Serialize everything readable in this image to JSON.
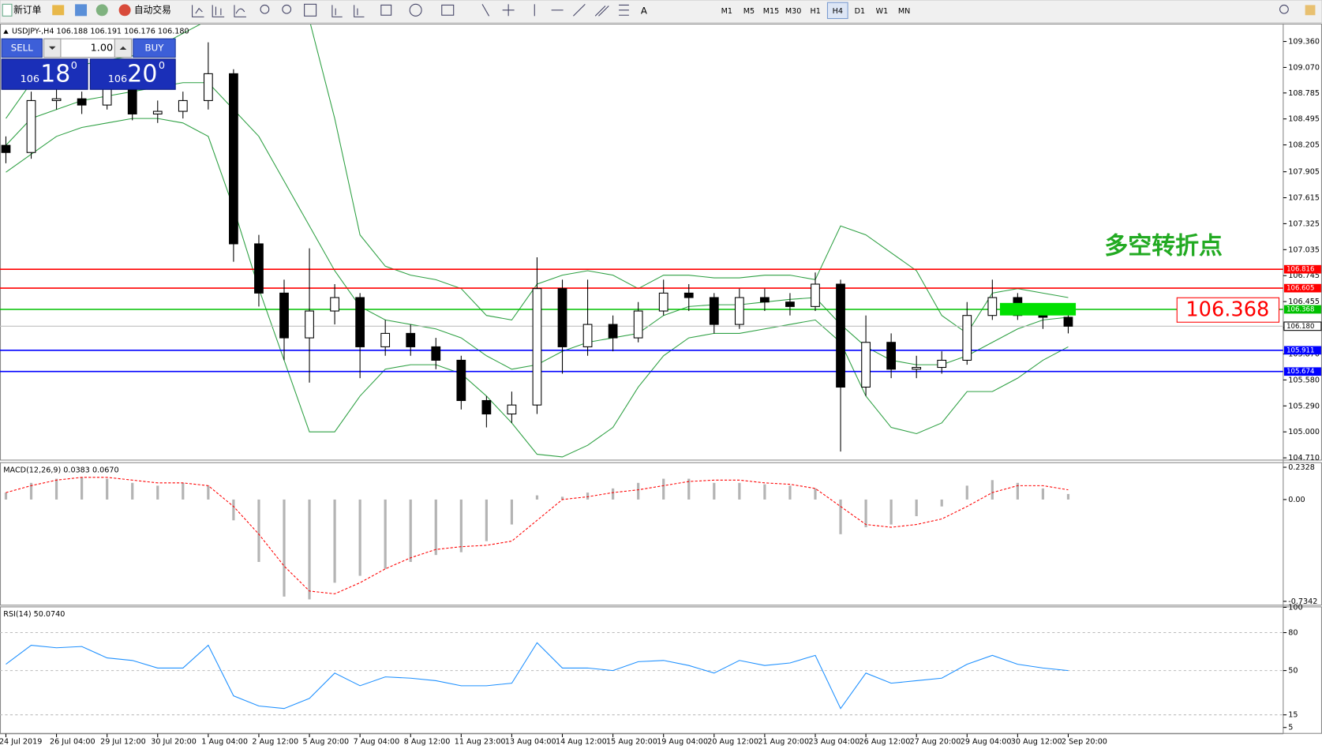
{
  "toolbar": {
    "new_order": "新订单",
    "auto_trading": "自动交易",
    "timeframes": [
      "M1",
      "M5",
      "M15",
      "M30",
      "H1",
      "H4",
      "D1",
      "W1",
      "MN"
    ],
    "active_timeframe": 5
  },
  "trade_panel": {
    "sell": "SELL",
    "lots": "1.00",
    "buy": "BUY",
    "bid": {
      "big": "106",
      "pips": "18",
      "point": "0"
    },
    "ask": {
      "big": "106",
      "pips": "20",
      "point": "0"
    }
  },
  "chart_data": [
    {
      "type": "candlestick",
      "header": "USDJPY-,H4  106.188 106.191 106.176 106.180",
      "categories": [
        "24 Jul 2019",
        null,
        "26 Jul 04:00",
        null,
        "29 Jul 12:00",
        null,
        "30 Jul 20:00",
        null,
        "1 Aug 04:00",
        null,
        "2 Aug 12:00",
        null,
        "5 Aug 20:00",
        null,
        "7 Aug 04:00",
        null,
        "8 Aug 12:00",
        null,
        "11 Aug 23:00",
        null,
        "13 Aug 04:00",
        null,
        "14 Aug 12:00",
        null,
        "15 Aug 20:00",
        null,
        "19 Aug 04:00",
        null,
        "20 Aug 12:00",
        null,
        "21 Aug 20:00",
        null,
        "23 Aug 04:00",
        null,
        "26 Aug 12:00",
        null,
        "27 Aug 20:00",
        null,
        "29 Aug 04:00",
        null,
        "30 Aug 12:00",
        null,
        "2 Sep 20:00"
      ],
      "open": [
        108.2,
        108.12,
        108.7,
        108.72,
        108.65,
        108.85,
        108.55,
        108.58,
        108.7,
        109.0,
        107.1,
        106.55,
        106.05,
        106.35,
        106.5,
        105.95,
        106.1,
        105.95,
        105.8,
        105.35,
        105.2,
        105.3,
        106.6,
        105.95,
        106.2,
        106.05,
        106.35,
        106.55,
        106.5,
        106.2,
        106.5,
        106.45,
        106.4,
        106.65,
        105.5,
        106.0,
        105.7,
        105.72,
        105.8,
        106.3,
        106.5,
        106.3,
        106.28
      ],
      "high": [
        108.3,
        108.8,
        108.85,
        108.8,
        108.95,
        108.9,
        108.7,
        108.8,
        109.35,
        109.05,
        107.2,
        106.7,
        107.05,
        106.65,
        106.55,
        106.25,
        106.2,
        106.05,
        105.85,
        105.4,
        105.45,
        106.95,
        106.7,
        106.7,
        106.3,
        106.45,
        106.7,
        106.65,
        106.55,
        106.6,
        106.6,
        106.55,
        106.78,
        106.7,
        106.3,
        106.1,
        105.85,
        105.9,
        106.45,
        106.7,
        106.55,
        106.4,
        106.32
      ],
      "low": [
        108.0,
        108.05,
        108.6,
        108.55,
        108.6,
        108.48,
        108.45,
        108.5,
        108.6,
        106.9,
        106.4,
        105.8,
        105.55,
        106.2,
        105.6,
        105.85,
        105.85,
        105.7,
        105.25,
        105.05,
        105.1,
        105.2,
        105.65,
        105.85,
        105.9,
        106.0,
        106.3,
        106.35,
        106.1,
        106.15,
        106.35,
        106.3,
        106.35,
        104.78,
        105.4,
        105.6,
        105.6,
        105.65,
        105.75,
        106.25,
        106.25,
        106.15,
        106.1
      ],
      "close": [
        108.12,
        108.7,
        108.72,
        108.65,
        108.85,
        108.55,
        108.58,
        108.7,
        109.0,
        107.1,
        106.55,
        106.05,
        106.35,
        106.5,
        105.95,
        106.1,
        105.95,
        105.8,
        105.35,
        105.2,
        105.3,
        106.6,
        105.95,
        106.2,
        106.05,
        106.35,
        106.55,
        106.5,
        106.2,
        106.5,
        106.45,
        106.4,
        106.65,
        105.5,
        106.0,
        105.7,
        105.72,
        105.8,
        106.3,
        106.5,
        106.3,
        106.28,
        106.18
      ],
      "bands": {
        "color": "#2ea043",
        "upper": [
          108.5,
          108.9,
          109.0,
          109.1,
          109.15,
          109.2,
          109.3,
          109.45,
          109.6,
          110.0,
          110.3,
          110.0,
          109.6,
          108.5,
          107.2,
          106.85,
          106.75,
          106.7,
          106.6,
          106.3,
          106.25,
          106.65,
          106.75,
          106.8,
          106.75,
          106.6,
          106.75,
          106.75,
          106.72,
          106.72,
          106.75,
          106.75,
          106.7,
          107.3,
          107.2,
          107.0,
          106.8,
          106.3,
          106.1,
          106.55,
          106.6,
          106.55,
          106.5
        ],
        "middle": [
          108.2,
          108.5,
          108.6,
          108.7,
          108.75,
          108.8,
          108.85,
          108.9,
          108.9,
          108.6,
          108.3,
          107.8,
          107.3,
          106.8,
          106.4,
          106.25,
          106.2,
          106.15,
          106.05,
          105.85,
          105.7,
          105.75,
          105.9,
          106.0,
          106.05,
          106.1,
          106.3,
          106.4,
          106.42,
          106.42,
          106.45,
          106.48,
          106.5,
          106.2,
          105.95,
          105.8,
          105.75,
          105.75,
          105.85,
          106.0,
          106.15,
          106.25,
          106.28
        ],
        "lower": [
          107.9,
          108.1,
          108.3,
          108.4,
          108.45,
          108.5,
          108.5,
          108.45,
          108.3,
          107.5,
          106.6,
          105.8,
          105.0,
          105.0,
          105.4,
          105.7,
          105.75,
          105.75,
          105.65,
          105.4,
          105.1,
          104.75,
          104.72,
          104.85,
          105.05,
          105.5,
          105.85,
          106.05,
          106.1,
          106.1,
          106.15,
          106.2,
          106.25,
          106.0,
          105.4,
          105.05,
          104.98,
          105.1,
          105.45,
          105.45,
          105.6,
          105.8,
          105.95
        ]
      },
      "ylim": [
        104.68,
        109.55
      ],
      "yticks": [
        {
          "value": 109.36,
          "label": "109.360"
        },
        {
          "value": 109.07,
          "label": "109.070"
        },
        108.785,
        108.495,
        108.205,
        107.905,
        107.615,
        107.325,
        107.035,
        106.745,
        106.455,
        106.165,
        {
          "value": 105.87,
          "label": "105.870"
        },
        {
          "value": 105.58,
          "label": "105.580"
        },
        {
          "value": 105.29,
          "label": "105.290"
        },
        {
          "value": 105,
          "label": "105.000"
        },
        {
          "value": 104.71,
          "label": "104.710"
        }
      ],
      "levels": [
        {
          "value": 106.816,
          "label": "106.816",
          "color": "#ff0000"
        },
        {
          "value": 106.605,
          "label": "106.605",
          "color": "#ff0000"
        },
        {
          "value": 106.368,
          "label": "106.368",
          "color": "#00c000"
        },
        {
          "value": 106.18,
          "label": "106.180",
          "color": "#c0c0c0"
        },
        {
          "value": 105.911,
          "label": "105.911",
          "color": "#0000ff"
        },
        {
          "value": 105.674,
          "label": "105.674",
          "color": "#0000ff"
        }
      ],
      "zone": [
        106.3,
        106.44
      ],
      "zone_color": "#00e000",
      "callout": "106.368",
      "callout_color": "#ff0000",
      "note": "多空转折点",
      "note_color": "#22aa22"
    },
    {
      "type": "macd",
      "header": "MACD(12,26,9) 0.0383 0.0670",
      "values": [
        0.05,
        0.12,
        0.15,
        0.16,
        0.15,
        0.12,
        0.1,
        0.12,
        0.1,
        -0.15,
        -0.45,
        -0.7,
        -0.72,
        -0.6,
        -0.55,
        -0.5,
        -0.45,
        -0.4,
        -0.38,
        -0.3,
        -0.18,
        0.03,
        0.02,
        0.05,
        0.08,
        0.12,
        0.15,
        0.15,
        0.12,
        0.12,
        0.11,
        0.1,
        0.08,
        -0.25,
        -0.2,
        -0.18,
        -0.12,
        -0.05,
        0.1,
        0.14,
        0.12,
        0.08,
        0.04
      ],
      "color": "#b4b4b4",
      "signal": [
        0.05,
        0.1,
        0.14,
        0.16,
        0.16,
        0.14,
        0.12,
        0.12,
        0.1,
        -0.05,
        -0.25,
        -0.48,
        -0.66,
        -0.68,
        -0.6,
        -0.5,
        -0.42,
        -0.36,
        -0.34,
        -0.33,
        -0.3,
        -0.15,
        0.0,
        0.02,
        0.05,
        0.07,
        0.1,
        0.13,
        0.14,
        0.14,
        0.12,
        0.11,
        0.08,
        -0.05,
        -0.18,
        -0.2,
        -0.18,
        -0.14,
        -0.05,
        0.05,
        0.1,
        0.1,
        0.07
      ],
      "signal_color": "#ff0000",
      "ylim": [
        -0.765,
        0.263
      ],
      "yticks": [
        0.2328,
        {
          "value": 0,
          "label": "0.00"
        },
        -0.7342
      ]
    },
    {
      "type": "line",
      "header": "RSI(14) 50.0740",
      "values": [
        55,
        70,
        68,
        69,
        60,
        58,
        52,
        52,
        70,
        30,
        22,
        20,
        28,
        48,
        38,
        45,
        44,
        42,
        38,
        38,
        40,
        72,
        52,
        52,
        50,
        57,
        58,
        54,
        48,
        58,
        54,
        56,
        62,
        20,
        48,
        40,
        42,
        44,
        55,
        62,
        55,
        52,
        50
      ],
      "color": "#1e90ff",
      "ylim": [
        0,
        100
      ],
      "yticks": [
        100,
        80,
        50,
        15,
        5
      ],
      "levels": [
        80,
        50,
        15
      ]
    }
  ]
}
